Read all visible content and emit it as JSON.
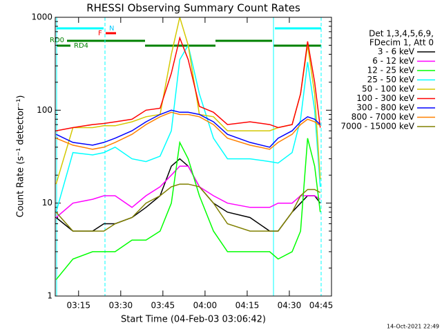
{
  "chart_data": {
    "type": "line",
    "title": "RHESSI Observing Summary Count Rates",
    "x_label": "Start Time (04-Feb-03 03:06:42)",
    "y_label": "Count Rate (s⁻¹ detector⁻¹)",
    "legend_title": [
      "Det 1,3,4,5,6,9,",
      "FDecim 1, Att 0"
    ],
    "timestamp": "14-Oct-2021 22:49",
    "annotations": [
      "N",
      "F",
      "RD0",
      "RD4"
    ],
    "log_y": true,
    "xlim": [
      186.7,
      285
    ],
    "xticks": [
      {
        "value": 195,
        "label": "03:15"
      },
      {
        "value": 210,
        "label": "03:30"
      },
      {
        "value": 225,
        "label": "03:45"
      },
      {
        "value": 240,
        "label": "04:00"
      },
      {
        "value": 255,
        "label": "04:15"
      },
      {
        "value": 270,
        "label": "04:30"
      },
      {
        "value": 285,
        "label": "04:45"
      }
    ],
    "ylim": [
      1,
      1000
    ],
    "yticks": [
      1,
      10,
      100,
      1000
    ],
    "x": [
      187,
      193,
      200,
      204,
      208,
      214,
      219,
      224,
      228,
      231,
      234,
      238,
      243,
      248,
      256,
      263,
      266,
      271,
      274,
      276.5,
      279,
      281
    ],
    "series": [
      {
        "name": "3 - 6 keV",
        "color": "#000000",
        "values": [
          7,
          5,
          5,
          6,
          6,
          7,
          9,
          12,
          25,
          30,
          25,
          15,
          10,
          8,
          7,
          5,
          5,
          8,
          10,
          12,
          12,
          10
        ]
      },
      {
        "name": "6 - 12 keV",
        "color": "#ff00ff",
        "values": [
          7,
          10,
          11,
          12,
          12,
          9,
          12,
          15,
          20,
          25,
          25,
          15,
          12,
          10,
          9,
          9,
          10,
          10,
          12,
          12,
          12,
          11
        ]
      },
      {
        "name": "12 - 25 keV",
        "color": "#00ff00",
        "values": [
          1.5,
          2.5,
          3,
          3,
          3,
          4,
          4,
          5,
          10,
          45,
          30,
          12,
          5,
          3,
          3,
          3,
          2.5,
          3,
          5,
          50,
          25,
          8
        ]
      },
      {
        "name": "25 - 50 keV",
        "color": "#00ffff",
        "values": [
          8,
          35,
          33,
          35,
          40,
          30,
          28,
          32,
          60,
          350,
          500,
          150,
          50,
          30,
          30,
          28,
          27,
          35,
          80,
          330,
          100,
          15
        ]
      },
      {
        "name": "50 - 100 keV",
        "color": "#d4c800",
        "values": [
          16,
          65,
          65,
          68,
          68,
          75,
          85,
          90,
          400,
          1000,
          500,
          90,
          85,
          60,
          60,
          60,
          65,
          70,
          150,
          500,
          150,
          18
        ]
      },
      {
        "name": "100 - 300 keV",
        "color": "#ff0000",
        "values": [
          60,
          65,
          70,
          72,
          75,
          80,
          100,
          105,
          250,
          600,
          350,
          110,
          95,
          70,
          75,
          70,
          65,
          70,
          150,
          550,
          200,
          65
        ]
      },
      {
        "name": "300 - 800 keV",
        "color": "#0000ff",
        "values": [
          55,
          45,
          42,
          45,
          50,
          60,
          75,
          90,
          100,
          95,
          95,
          90,
          75,
          55,
          45,
          40,
          50,
          60,
          75,
          85,
          80,
          70
        ]
      },
      {
        "name": "800 - 7000 keV",
        "color": "#ff8000",
        "values": [
          50,
          42,
          38,
          40,
          45,
          55,
          70,
          85,
          95,
          90,
          90,
          85,
          70,
          50,
          42,
          38,
          45,
          55,
          70,
          80,
          75,
          68
        ]
      },
      {
        "name": "7000 - 15000 keV",
        "color": "#808000",
        "values": [
          8,
          5,
          5,
          5,
          6,
          7,
          10,
          12,
          15,
          16,
          16,
          15,
          10,
          6,
          5,
          5,
          5,
          8,
          12,
          14,
          14,
          13
        ]
      }
    ]
  }
}
